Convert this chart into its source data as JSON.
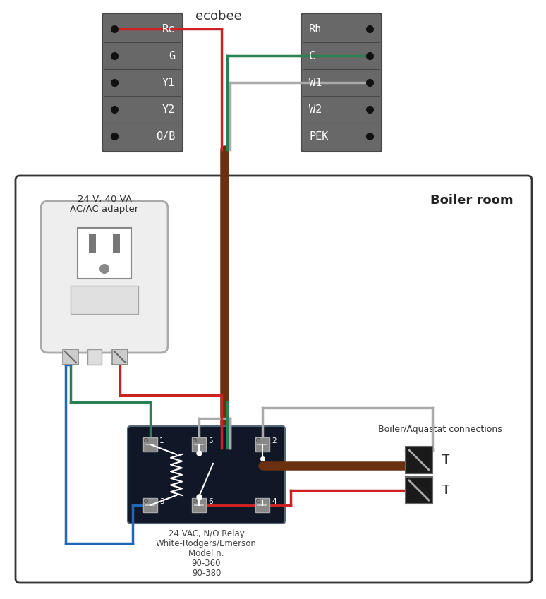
{
  "bg_color": "#ffffff",
  "left_labels": [
    "Rc",
    "G",
    "Y1",
    "Y2",
    "O/B"
  ],
  "right_labels": [
    "Rh",
    "C",
    "W1",
    "W2",
    "PEK"
  ],
  "conn_fill": "#686868",
  "conn_edge": "#484848",
  "wire_red": "#cc2222",
  "wire_green": "#2a8050",
  "wire_gray": "#aaaaaa",
  "wire_brown": "#6b3010",
  "wire_blue": "#2266bb",
  "ecobee_label": "ecobee",
  "boiler_room_label": "Boiler room",
  "adapter_line1": "24 V, 40 VA",
  "adapter_line2": "AC/AC adapter",
  "relay_line1": "24 VAC, N/O Relay",
  "relay_line2": "White-Rodgers/Emerson",
  "relay_line3": "Model n.",
  "relay_line4": "90-360",
  "relay_line5": "90-380",
  "boiler_label": "Boiler/Aquastat connections",
  "T_label": "T",
  "lw_wire": 2.5,
  "lw_bundle": 9
}
